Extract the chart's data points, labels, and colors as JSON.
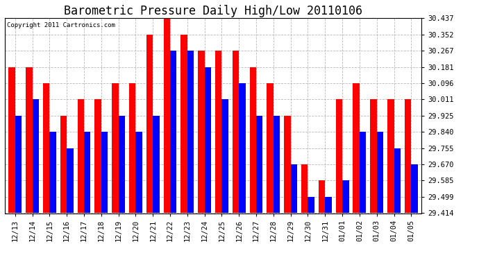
{
  "title": "Barometric Pressure Daily High/Low 20110106",
  "copyright": "Copyright 2011 Cartronics.com",
  "categories": [
    "12/13",
    "12/14",
    "12/15",
    "12/16",
    "12/17",
    "12/18",
    "12/19",
    "12/20",
    "12/21",
    "12/22",
    "12/23",
    "12/24",
    "12/25",
    "12/26",
    "12/27",
    "12/28",
    "12/29",
    "12/30",
    "12/31",
    "01/01",
    "01/02",
    "01/03",
    "01/04",
    "01/05"
  ],
  "high_values": [
    30.181,
    30.181,
    30.096,
    29.925,
    30.011,
    30.011,
    30.096,
    30.096,
    30.352,
    30.437,
    30.352,
    30.267,
    30.267,
    30.267,
    30.181,
    30.096,
    29.925,
    29.67,
    29.585,
    30.011,
    30.096,
    30.011,
    30.011,
    30.011
  ],
  "low_values": [
    29.925,
    30.011,
    29.84,
    29.755,
    29.84,
    29.84,
    29.925,
    29.84,
    29.925,
    30.267,
    30.267,
    30.181,
    30.011,
    30.096,
    29.925,
    29.925,
    29.67,
    29.499,
    29.499,
    29.585,
    29.84,
    29.84,
    29.755,
    29.67
  ],
  "ymin": 29.414,
  "ymax": 30.437,
  "yticks": [
    30.437,
    30.352,
    30.267,
    30.181,
    30.096,
    30.011,
    29.925,
    29.84,
    29.755,
    29.67,
    29.585,
    29.499,
    29.414
  ],
  "high_color": "#ff0000",
  "low_color": "#0000ff",
  "background_color": "#ffffff",
  "grid_color": "#b0b0b0",
  "title_fontsize": 12,
  "bar_width": 0.38
}
